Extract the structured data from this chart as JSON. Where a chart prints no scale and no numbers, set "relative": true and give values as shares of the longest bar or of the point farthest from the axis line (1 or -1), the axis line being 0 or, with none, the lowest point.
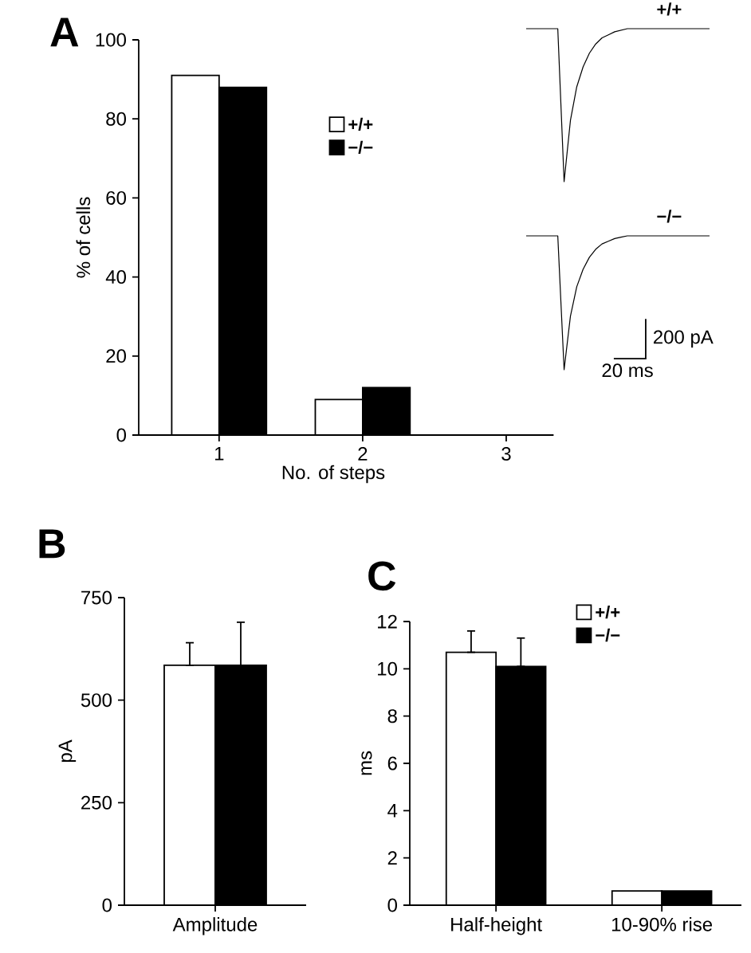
{
  "chart_data": [
    {
      "type": "bar",
      "title": "A",
      "xlabel": "No. of steps",
      "ylabel": "% of cells",
      "categories": [
        "1",
        "2",
        "3"
      ],
      "series": [
        {
          "name": "+/+",
          "color": "#ffffff",
          "values": [
            91,
            9,
            0
          ]
        },
        {
          "name": "−/−",
          "color": "#000000",
          "values": [
            88,
            12,
            0
          ]
        }
      ],
      "ylim": [
        0,
        100
      ],
      "yticks": [
        0,
        20,
        40,
        60,
        80,
        100
      ],
      "legend": "top"
    },
    {
      "type": "bar",
      "title": "B",
      "ylabel": "pA",
      "categories": [
        "Amplitude"
      ],
      "series": [
        {
          "color": "#ffffff",
          "values": [
            585
          ],
          "errors": [
            [
              585,
              640
            ]
          ]
        },
        {
          "color": "#000000",
          "values": [
            585
          ],
          "errors": [
            [
              585,
              690
            ]
          ]
        }
      ],
      "ylim": [
        0,
        750
      ],
      "yticks": [
        0,
        250,
        500,
        750
      ]
    },
    {
      "type": "bar",
      "title": "C",
      "ylabel": "ms",
      "categories": [
        "Half-height",
        "10-90% rise"
      ],
      "series": [
        {
          "name": "+/+",
          "color": "#ffffff",
          "values": [
            10.7,
            0.6
          ],
          "errors": [
            [
              10.7,
              11.6
            ],
            null
          ]
        },
        {
          "name": "−/−",
          "color": "#000000",
          "values": [
            10.1,
            0.6
          ],
          "errors": [
            [
              10.1,
              11.3
            ],
            null
          ]
        }
      ],
      "ylim": [
        0,
        12
      ],
      "yticks": [
        0,
        2,
        4,
        6,
        8,
        10,
        12
      ],
      "legend": "top right"
    },
    {
      "type": "line",
      "title": "+/+",
      "relative": true,
      "categories": [
        null,
        null,
        null,
        null,
        null,
        null,
        null,
        null,
        null,
        null,
        null,
        null,
        null,
        null,
        null,
        null,
        null,
        null,
        null,
        null,
        null,
        null,
        null,
        null,
        null,
        null,
        null,
        null,
        null,
        null
      ],
      "series": [
        {
          "color": "#000000",
          "values": [
            1,
            1,
            1,
            1,
            1,
            1,
            0,
            0.4,
            0.62,
            0.75,
            0.84,
            0.9,
            0.94,
            0.96,
            0.98,
            0.99,
            1,
            1,
            1,
            1,
            1,
            1,
            1,
            1,
            1,
            1,
            1,
            1,
            1,
            1
          ]
        }
      ]
    },
    {
      "type": "line",
      "title": "−/−",
      "relative": true,
      "annotations": [
        "200 pA",
        "20 ms"
      ],
      "categories": [
        null,
        null,
        null,
        null,
        null,
        null,
        null,
        null,
        null,
        null,
        null,
        null,
        null,
        null,
        null,
        null,
        null,
        null,
        null,
        null,
        null,
        null,
        null,
        null,
        null,
        null,
        null,
        null,
        null,
        null
      ],
      "series": [
        {
          "color": "#000000",
          "values": [
            1,
            1,
            1,
            1,
            1,
            1,
            0,
            0.4,
            0.62,
            0.75,
            0.84,
            0.9,
            0.94,
            0.96,
            0.98,
            0.99,
            1,
            1,
            1,
            1,
            1,
            1,
            1,
            1,
            1,
            1,
            1,
            1,
            1,
            1
          ]
        }
      ]
    }
  ]
}
